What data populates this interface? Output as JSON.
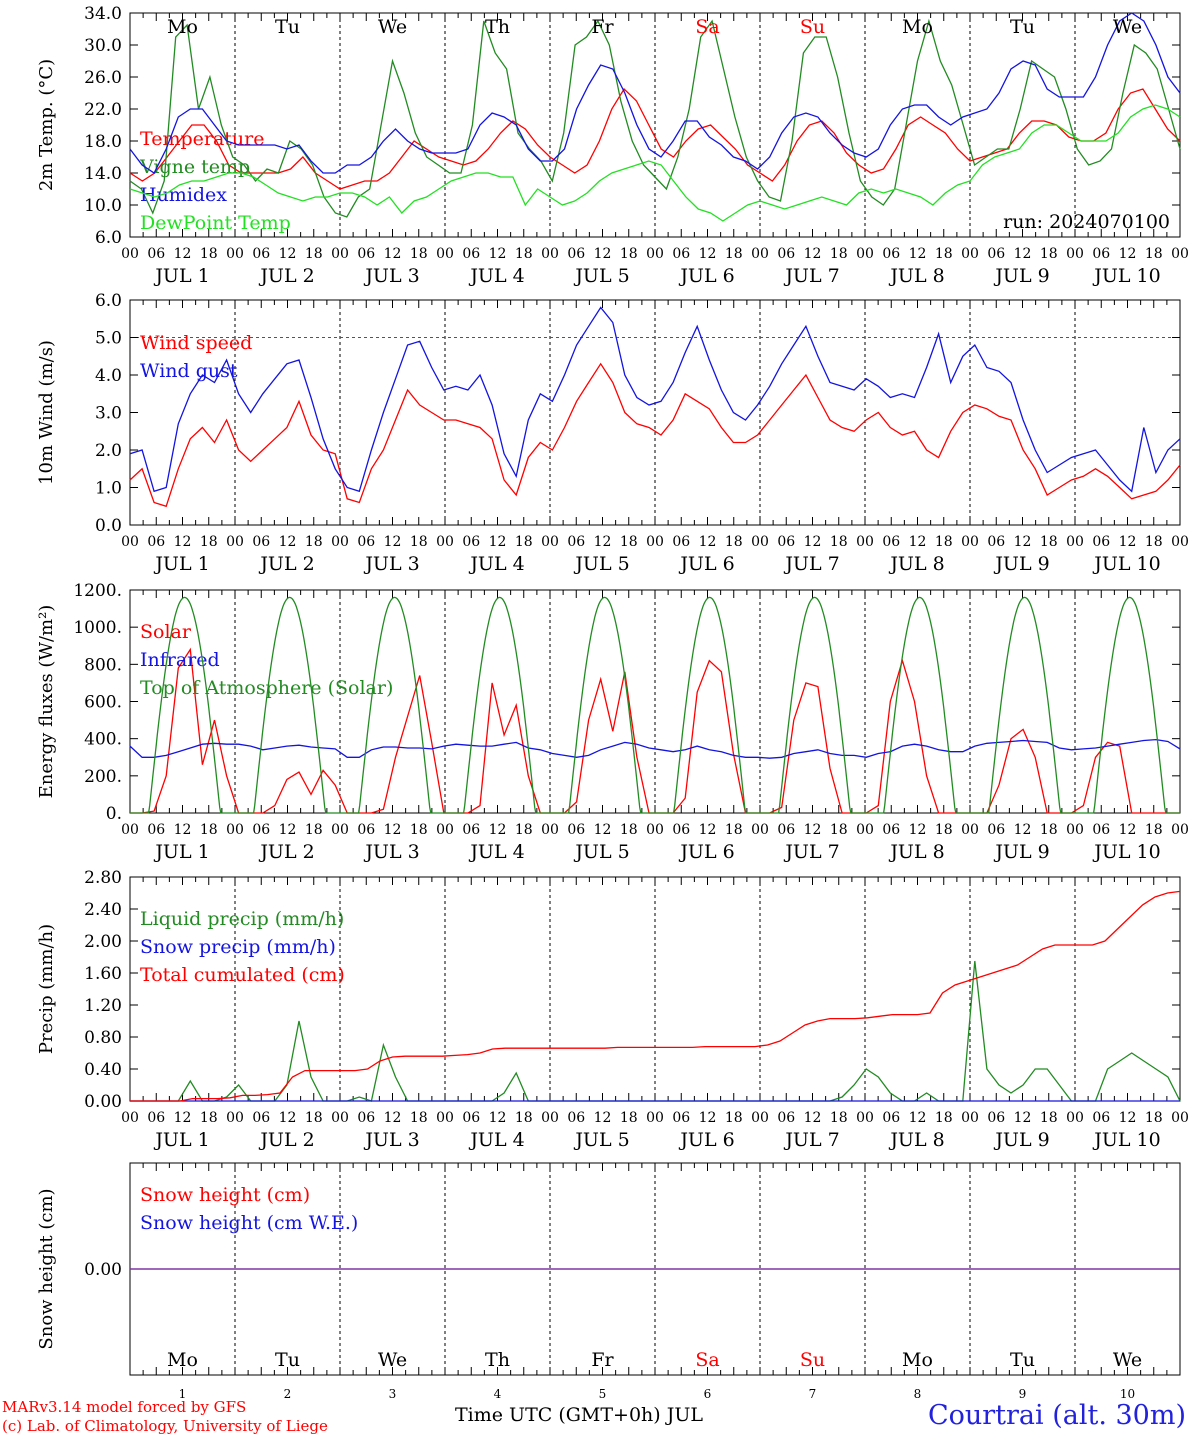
{
  "colors": {
    "red": "#ff0000",
    "green": "#228b22",
    "blue": "#1414e0",
    "lightgreen": "#22e022",
    "purple": "#7b2f9e",
    "black": "#000000"
  },
  "days": [
    "Mo",
    "Tu",
    "We",
    "Th",
    "Fr",
    "Sa",
    "Su",
    "Mo",
    "Tu",
    "We"
  ],
  "weekend_days": [
    "Sa",
    "Su"
  ],
  "hour_ticks": [
    "00",
    "06",
    "12",
    "18"
  ],
  "end_tick": "00",
  "date_labels": [
    "JUL  1",
    "JUL  2",
    "JUL  3",
    "JUL  4",
    "JUL  5",
    "JUL  6",
    "JUL  7",
    "JUL  8",
    "JUL  9",
    "JUL 10"
  ],
  "bottom_day_numbers": [
    "1",
    "2",
    "3",
    "4",
    "5",
    "6",
    "7",
    "8",
    "9",
    "10"
  ],
  "run_label": "run: 2024070100",
  "xaxis_title": "Time UTC (GMT+0h) JUL",
  "station": "Courtrai (alt. 30m)",
  "credits": [
    "MARv3.14 model forced by GFS",
    "(c) Lab. of Climatology, University of Liege"
  ],
  "chart_data": [
    {
      "type": "line",
      "ylabel": "2m Temp. (°C)",
      "ylim": [
        6,
        34
      ],
      "ytick_labels": [
        "6.0",
        "10.0",
        "14.0",
        "18.0",
        "22.0",
        "26.0",
        "30.0",
        "34.0"
      ],
      "grid": "vertical day separators",
      "series": [
        {
          "name": "Temperature",
          "color": "red",
          "values": [
            14,
            13,
            14,
            16,
            18,
            20,
            20,
            18,
            15,
            14,
            14,
            14,
            14,
            14.5,
            16,
            14,
            13,
            12,
            12.5,
            13,
            13,
            14,
            16,
            18,
            17,
            16,
            15.5,
            15,
            15.5,
            17,
            19,
            20.5,
            19.5,
            17.5,
            16,
            15,
            14,
            15,
            18,
            22,
            24.5,
            23,
            20,
            17,
            16,
            18,
            19.5,
            20,
            18.5,
            17,
            15,
            14,
            13,
            15,
            18,
            20,
            20.5,
            19,
            16.5,
            15,
            14,
            14.5,
            17,
            20,
            21,
            20,
            19,
            17,
            15.5,
            16,
            16.5,
            17,
            19,
            20.5,
            20.5,
            20,
            18.5,
            18,
            18,
            19,
            22,
            24,
            24.5,
            22,
            19.5,
            18
          ]
        },
        {
          "name": "Vigne temp",
          "color": "green",
          "values": [
            13,
            12,
            9,
            13,
            31,
            32.5,
            22,
            26,
            20,
            16,
            15,
            13,
            14.5,
            14,
            18,
            17,
            15,
            11,
            9,
            8.5,
            11,
            12,
            20,
            28,
            24,
            19,
            16,
            15,
            14,
            14,
            20,
            33,
            29,
            27,
            19,
            17,
            15.5,
            13,
            19,
            30,
            31,
            33,
            30,
            23,
            18,
            15,
            13.5,
            12,
            16,
            22,
            31,
            33,
            27,
            21,
            16,
            13,
            11,
            10.5,
            18,
            29,
            31,
            31,
            26,
            19,
            13,
            11,
            10,
            12,
            20,
            28,
            33,
            28,
            25,
            20,
            15,
            16,
            17,
            17,
            22,
            28,
            27,
            26,
            22,
            17,
            15,
            15.5,
            17,
            24,
            30,
            29,
            27,
            22,
            17
          ]
        },
        {
          "name": "Humidex",
          "color": "blue",
          "values": [
            17,
            15,
            14,
            17,
            21,
            22,
            22,
            20,
            18,
            17.5,
            17.5,
            17.5,
            17.5,
            17,
            17.5,
            15.5,
            14,
            14,
            15,
            15,
            16,
            18,
            19.5,
            18,
            17,
            16.5,
            16.5,
            16.5,
            17,
            20,
            21.5,
            21,
            20,
            17,
            15.5,
            15.5,
            17,
            22,
            25,
            27.5,
            27,
            24,
            20,
            17,
            16,
            18,
            20.5,
            20.5,
            18.5,
            17.5,
            16,
            15.5,
            14.5,
            16,
            19,
            21,
            21.5,
            21,
            19,
            17.5,
            16.5,
            16,
            17,
            20,
            22,
            22.5,
            22.5,
            21,
            20,
            21,
            21.5,
            22,
            24,
            27,
            28,
            27.5,
            24.5,
            23.5,
            23.5,
            23.5,
            26,
            30,
            33,
            34,
            33,
            30,
            26,
            24
          ]
        },
        {
          "name": "DewPoint Temp",
          "color": "lightgreen",
          "values": [
            12,
            11.5,
            11,
            11.5,
            12.5,
            13,
            13,
            13.5,
            14,
            14,
            13.5,
            12.5,
            11.5,
            11,
            10.5,
            11,
            11,
            11.5,
            11.5,
            11,
            10,
            11,
            9,
            10.5,
            11,
            12,
            13,
            13.5,
            14,
            14,
            13.5,
            13.5,
            10,
            12,
            11,
            10,
            10.5,
            11.5,
            13,
            14,
            14.5,
            15,
            15.5,
            15,
            13,
            11,
            9.5,
            9,
            8,
            9,
            10,
            10.5,
            10,
            9.5,
            10,
            10.5,
            11,
            10.5,
            10,
            11.5,
            12,
            11.5,
            12,
            11.5,
            11,
            10,
            11.5,
            12.5,
            13,
            15,
            16,
            16.5,
            17,
            19,
            20,
            20,
            19,
            18,
            18,
            18,
            19,
            21,
            22,
            22.5,
            22,
            21
          ]
        }
      ]
    },
    {
      "type": "line",
      "ylabel": "10m Wind (m/s)",
      "ylim": [
        0,
        6
      ],
      "ytick_labels": [
        "0.0",
        "1.0",
        "2.0",
        "3.0",
        "4.0",
        "5.0",
        "6.0"
      ],
      "reference_line": 5.0,
      "series": [
        {
          "name": "Wind speed",
          "color": "red",
          "values": [
            1.2,
            1.5,
            0.6,
            0.5,
            1.5,
            2.3,
            2.6,
            2.2,
            2.8,
            2.0,
            1.7,
            2.0,
            2.3,
            2.6,
            3.3,
            2.4,
            2.0,
            1.9,
            0.7,
            0.6,
            1.5,
            2.0,
            2.8,
            3.6,
            3.2,
            3.0,
            2.8,
            2.8,
            2.7,
            2.6,
            2.3,
            1.2,
            0.8,
            1.8,
            2.2,
            2.0,
            2.6,
            3.3,
            3.8,
            4.3,
            3.8,
            3.0,
            2.7,
            2.6,
            2.4,
            2.8,
            3.5,
            3.3,
            3.1,
            2.6,
            2.2,
            2.2,
            2.4,
            2.8,
            3.2,
            3.6,
            4.0,
            3.4,
            2.8,
            2.6,
            2.5,
            2.8,
            3.0,
            2.6,
            2.4,
            2.5,
            2.0,
            1.8,
            2.5,
            3.0,
            3.2,
            3.1,
            2.9,
            2.8,
            2.0,
            1.5,
            0.8,
            1.0,
            1.2,
            1.3,
            1.5,
            1.3,
            1.0,
            0.7,
            0.8,
            0.9,
            1.2,
            1.6
          ]
        },
        {
          "name": "Wind gust",
          "color": "blue",
          "values": [
            1.9,
            2.0,
            0.9,
            1.0,
            2.7,
            3.5,
            4.0,
            3.8,
            4.4,
            3.5,
            3.0,
            3.5,
            3.9,
            4.3,
            4.4,
            3.4,
            2.3,
            1.5,
            1.0,
            0.9,
            2.0,
            3.0,
            3.9,
            4.8,
            4.9,
            4.2,
            3.6,
            3.7,
            3.6,
            4.0,
            3.2,
            1.9,
            1.3,
            2.8,
            3.5,
            3.3,
            4.0,
            4.8,
            5.3,
            5.8,
            5.4,
            4.0,
            3.4,
            3.2,
            3.3,
            3.8,
            4.6,
            5.3,
            4.4,
            3.6,
            3.0,
            2.8,
            3.2,
            3.7,
            4.3,
            4.8,
            5.3,
            4.5,
            3.8,
            3.7,
            3.6,
            3.9,
            3.7,
            3.4,
            3.5,
            3.4,
            4.2,
            5.1,
            3.8,
            4.5,
            4.8,
            4.2,
            4.1,
            3.8,
            2.8,
            2.0,
            1.4,
            1.6,
            1.8,
            1.9,
            2.0,
            1.6,
            1.2,
            0.9,
            2.6,
            1.4,
            2.0,
            2.3
          ]
        }
      ]
    },
    {
      "type": "line",
      "ylabel": "Energy fluxes (W/m²)",
      "ylim": [
        0,
        1200
      ],
      "ytick_labels": [
        "0.",
        "200.",
        "400.",
        "600.",
        "800.",
        "1000.",
        "1200."
      ],
      "series": [
        {
          "name": "Solar",
          "color": "red",
          "values": [
            0,
            0,
            10,
            200,
            780,
            880,
            260,
            500,
            200,
            0,
            0,
            0,
            40,
            180,
            220,
            100,
            230,
            150,
            0,
            0,
            0,
            20,
            300,
            520,
            740,
            380,
            0,
            0,
            0,
            40,
            700,
            420,
            580,
            200,
            0,
            0,
            0,
            60,
            500,
            720,
            440,
            760,
            300,
            0,
            0,
            0,
            80,
            650,
            820,
            760,
            320,
            0,
            0,
            0,
            30,
            500,
            700,
            680,
            240,
            0,
            0,
            0,
            40,
            600,
            820,
            600,
            200,
            0,
            0,
            0,
            0,
            0,
            150,
            400,
            450,
            300,
            0,
            0,
            0,
            40,
            300,
            380,
            360,
            0,
            0,
            0,
            0,
            0
          ]
        },
        {
          "name": "Infrared",
          "color": "blue",
          "values": [
            360,
            300,
            300,
            310,
            330,
            350,
            370,
            375,
            370,
            370,
            360,
            340,
            350,
            360,
            365,
            355,
            350,
            345,
            300,
            300,
            340,
            355,
            355,
            350,
            350,
            345,
            360,
            370,
            365,
            360,
            360,
            370,
            380,
            350,
            340,
            320,
            310,
            300,
            310,
            340,
            360,
            380,
            370,
            350,
            340,
            330,
            340,
            360,
            340,
            330,
            310,
            300,
            300,
            295,
            300,
            320,
            330,
            340,
            320,
            310,
            310,
            300,
            320,
            330,
            360,
            370,
            360,
            340,
            330,
            330,
            360,
            375,
            380,
            385,
            390,
            385,
            380,
            350,
            340,
            345,
            350,
            360,
            370,
            380,
            390,
            395,
            385,
            345
          ]
        },
        {
          "name": "Top of Atmosphere (Solar)",
          "color": "green",
          "peaks_per_day": 1160
        }
      ]
    },
    {
      "type": "line",
      "ylabel": "Precip (mm/h)",
      "ylim": [
        0,
        2.8
      ],
      "ytick_labels": [
        "0.00",
        "0.40",
        "0.80",
        "1.20",
        "1.60",
        "2.00",
        "2.40",
        "2.80"
      ],
      "series": [
        {
          "name": "Liquid precip (mm/h)",
          "color": "green",
          "values": [
            0,
            0,
            0,
            0,
            0,
            0.25,
            0,
            0,
            0.05,
            0.2,
            0,
            0,
            0,
            0.2,
            1.0,
            0.3,
            0,
            0,
            0,
            0.05,
            0,
            0.7,
            0.3,
            0,
            0,
            0,
            0,
            0,
            0,
            0,
            0,
            0.1,
            0.35,
            0,
            0,
            0,
            0,
            0,
            0,
            0,
            0,
            0,
            0,
            0,
            0,
            0,
            0,
            0,
            0,
            0,
            0,
            0,
            0,
            0,
            0,
            0,
            0,
            0,
            0,
            0.05,
            0.2,
            0.4,
            0.3,
            0.1,
            0,
            0,
            0.1,
            0,
            0,
            0,
            1.75,
            0.4,
            0.2,
            0.1,
            0.2,
            0.4,
            0.4,
            0.2,
            0,
            0,
            0,
            0.4,
            0.5,
            0.6,
            0.5,
            0.4,
            0.3,
            0
          ]
        },
        {
          "name": "Snow precip (mm/h)",
          "color": "blue",
          "values": [
            0
          ]
        },
        {
          "name": "Total cumulated (cm)",
          "color": "red",
          "values": [
            0,
            0,
            0,
            0,
            0,
            0.03,
            0.03,
            0.03,
            0.04,
            0.07,
            0.07,
            0.08,
            0.1,
            0.3,
            0.38,
            0.38,
            0.38,
            0.38,
            0.38,
            0.4,
            0.5,
            0.55,
            0.56,
            0.56,
            0.56,
            0.56,
            0.57,
            0.58,
            0.6,
            0.65,
            0.66,
            0.66,
            0.66,
            0.66,
            0.66,
            0.66,
            0.66,
            0.66,
            0.66,
            0.67,
            0.67,
            0.67,
            0.67,
            0.67,
            0.67,
            0.67,
            0.68,
            0.68,
            0.68,
            0.68,
            0.68,
            0.7,
            0.75,
            0.85,
            0.95,
            1.0,
            1.03,
            1.03,
            1.03,
            1.04,
            1.06,
            1.08,
            1.08,
            1.08,
            1.1,
            1.35,
            1.45,
            1.5,
            1.55,
            1.6,
            1.65,
            1.7,
            1.8,
            1.9,
            1.95,
            1.95,
            1.95,
            1.95,
            2.0,
            2.15,
            2.3,
            2.45,
            2.55,
            2.6,
            2.62
          ]
        }
      ]
    },
    {
      "type": "line",
      "ylabel": "Snow height (cm)",
      "ylim": [
        -0.5,
        0.5
      ],
      "ytick_labels": [
        "0.00"
      ],
      "series": [
        {
          "name": "Snow height (cm)",
          "color": "red",
          "values": [
            0
          ]
        },
        {
          "name": "Snow height (cm W.E.)",
          "color": "blue",
          "values": [
            0
          ]
        }
      ]
    }
  ]
}
